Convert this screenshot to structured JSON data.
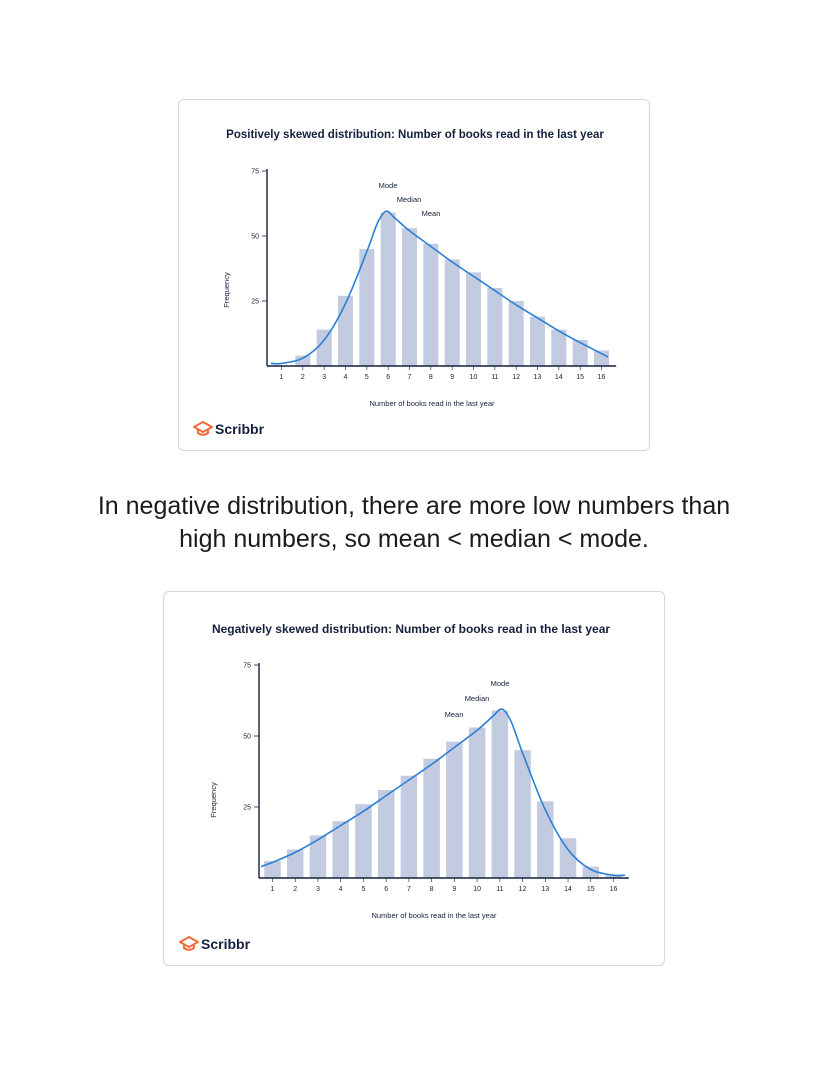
{
  "caption": {
    "line1": "In negative distribution, there are more low numbers than",
    "line2": "high numbers, so mean < median < mode."
  },
  "colors": {
    "bar": "#c3cbe1",
    "curve": "#2b7fd4",
    "axis": "#14213d",
    "text": "#14213d",
    "brand_icon": "#f26b3a"
  },
  "brand": {
    "name": "Scribbr",
    "icon": "graduation-cap-icon"
  },
  "chart_data": [
    {
      "type": "bar",
      "title": "Positively skewed distribution: Number of books read in the last year",
      "xlabel": "Number of books read in the last year",
      "ylabel": "Frequency",
      "ylim": [
        0,
        75
      ],
      "yticks": [
        25,
        50,
        75
      ],
      "categories": [
        "1",
        "2",
        "3",
        "4",
        "5",
        "6",
        "7",
        "8",
        "9",
        "10",
        "11",
        "12",
        "13",
        "14",
        "15",
        "16"
      ],
      "values": [
        0,
        4,
        14,
        27,
        45,
        59,
        53,
        47,
        41,
        36,
        30,
        25,
        19,
        14,
        10,
        6
      ],
      "curve": [
        [
          0.5,
          1
        ],
        [
          1,
          1
        ],
        [
          2,
          3
        ],
        [
          3,
          10
        ],
        [
          4,
          24
        ],
        [
          5,
          44
        ],
        [
          5.5,
          55
        ],
        [
          5.9,
          59.5
        ],
        [
          6.3,
          57
        ],
        [
          7,
          52
        ],
        [
          8,
          46
        ],
        [
          9,
          40
        ],
        [
          10,
          34.5
        ],
        [
          11,
          29
        ],
        [
          12,
          23.5
        ],
        [
          13,
          18.5
        ],
        [
          14,
          13.5
        ],
        [
          15,
          9
        ],
        [
          16.3,
          3.5
        ]
      ],
      "annotations": {
        "mode": "Mode",
        "median": "Median",
        "mean": "Mean"
      }
    },
    {
      "type": "bar",
      "title": "Negatively skewed distribution: Number of books read in the last year",
      "xlabel": "Number of books read in the last year",
      "ylabel": "Frequency",
      "ylim": [
        0,
        75
      ],
      "yticks": [
        25,
        50,
        75
      ],
      "categories": [
        "1",
        "2",
        "3",
        "4",
        "5",
        "6",
        "7",
        "8",
        "9",
        "10",
        "11",
        "12",
        "13",
        "14",
        "15",
        "16"
      ],
      "values": [
        6,
        10,
        15,
        20,
        26,
        31,
        36,
        42,
        48,
        53,
        59,
        45,
        27,
        14,
        4,
        1
      ],
      "curve": [
        [
          0.5,
          4
        ],
        [
          1,
          5.5
        ],
        [
          2,
          9
        ],
        [
          3,
          13.5
        ],
        [
          4,
          18.5
        ],
        [
          5,
          23.5
        ],
        [
          6,
          29
        ],
        [
          7,
          34.5
        ],
        [
          8,
          40
        ],
        [
          9,
          46
        ],
        [
          10,
          52
        ],
        [
          10.7,
          57
        ],
        [
          11.1,
          59.5
        ],
        [
          11.5,
          55
        ],
        [
          12,
          44
        ],
        [
          13,
          24
        ],
        [
          14,
          10
        ],
        [
          15,
          3
        ],
        [
          16,
          1
        ],
        [
          16.5,
          1
        ]
      ],
      "annotations": {
        "mode": "Mode",
        "median": "Median",
        "mean": "Mean"
      }
    }
  ]
}
